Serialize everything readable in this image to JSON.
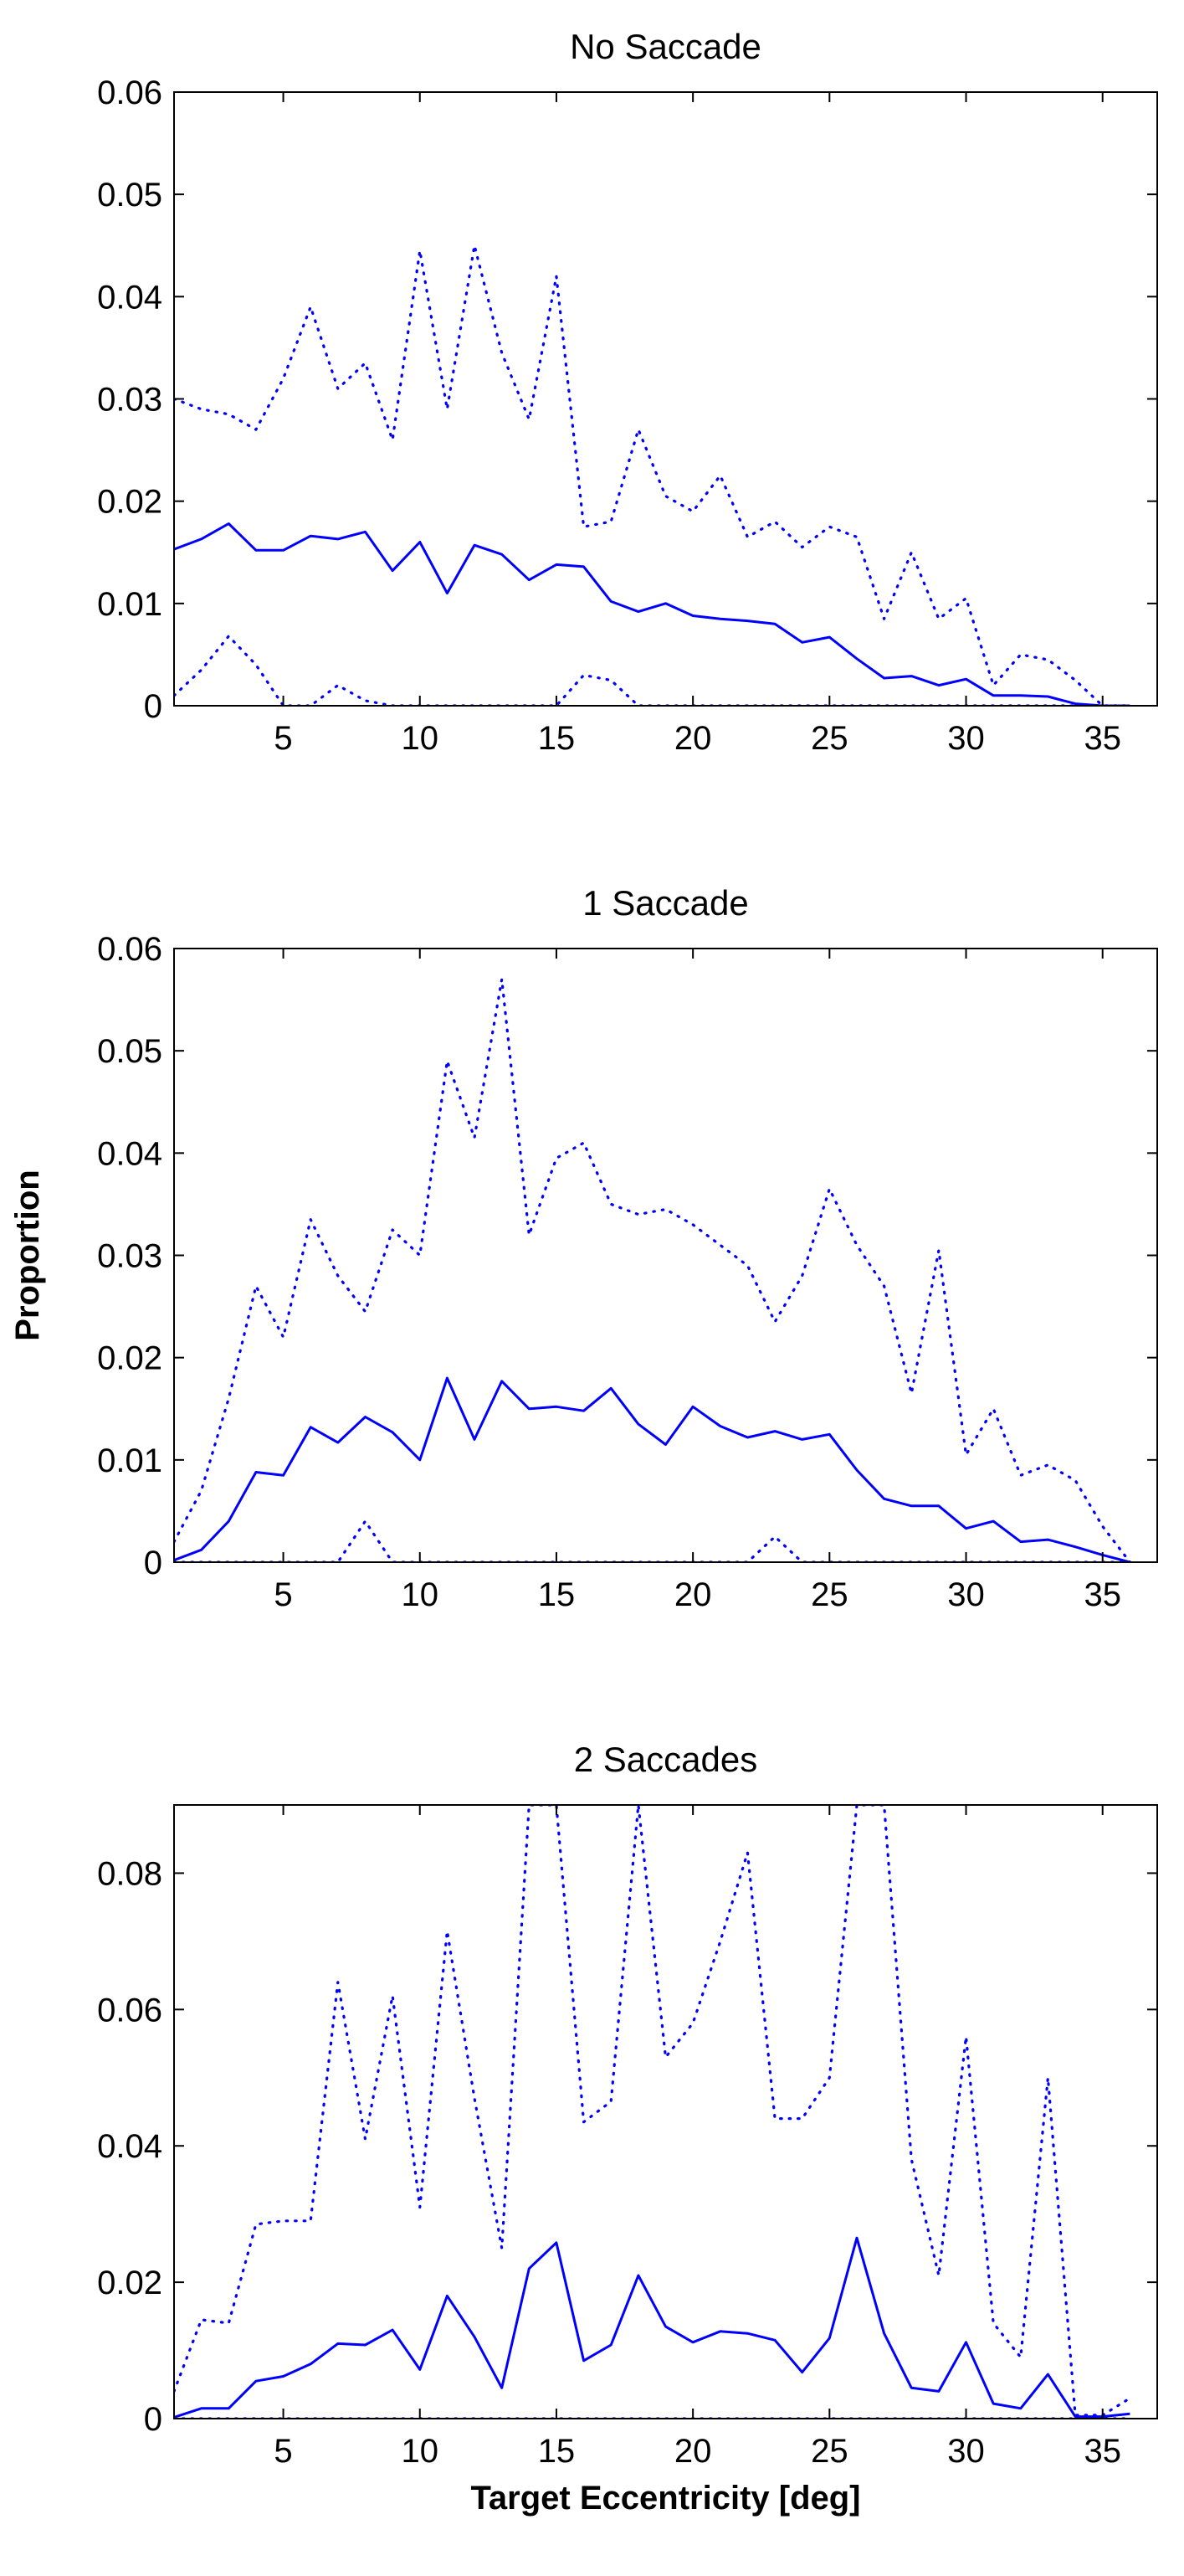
{
  "chart_data": [
    {
      "type": "line",
      "title": "No Saccade",
      "xlabel": "",
      "ylabel": "",
      "xlim": [
        1,
        37
      ],
      "ylim": [
        0,
        0.06
      ],
      "xticks": [
        5,
        10,
        15,
        20,
        25,
        30,
        35
      ],
      "xtick_labels": [
        "5",
        "10",
        "15",
        "20",
        "25",
        "30",
        "35"
      ],
      "yticks": [
        0,
        0.01,
        0.02,
        0.03,
        0.04,
        0.05,
        0.06
      ],
      "ytick_labels": [
        "0",
        "0.01",
        "0.02",
        "0.03",
        "0.04",
        "0.05",
        "0.06"
      ],
      "color": "#0000ff",
      "x": [
        1,
        2,
        3,
        4,
        5,
        6,
        7,
        8,
        9,
        10,
        11,
        12,
        13,
        14,
        15,
        16,
        17,
        18,
        19,
        20,
        21,
        22,
        23,
        24,
        25,
        26,
        27,
        28,
        29,
        30,
        31,
        32,
        33,
        34,
        35,
        36
      ],
      "series": [
        {
          "name": "mean",
          "style": "solid",
          "values": [
            0.0153,
            0.0163,
            0.0178,
            0.0152,
            0.0152,
            0.0166,
            0.0163,
            0.017,
            0.0132,
            0.016,
            0.011,
            0.0157,
            0.0148,
            0.0123,
            0.0138,
            0.0136,
            0.0102,
            0.0092,
            0.01,
            0.0088,
            0.0085,
            0.0083,
            0.008,
            0.0062,
            0.0067,
            0.0046,
            0.0027,
            0.0029,
            0.002,
            0.0026,
            0.001,
            0.001,
            0.0009,
            0.0002,
            0.0,
            0.0
          ]
        },
        {
          "name": "upper",
          "style": "dotted",
          "values": [
            0.03,
            0.029,
            0.0285,
            0.027,
            0.032,
            0.039,
            0.031,
            0.0335,
            0.026,
            0.0445,
            0.029,
            0.045,
            0.0345,
            0.028,
            0.042,
            0.0175,
            0.018,
            0.027,
            0.0205,
            0.019,
            0.0225,
            0.0165,
            0.018,
            0.0155,
            0.0175,
            0.0165,
            0.0085,
            0.015,
            0.0085,
            0.0105,
            0.002,
            0.005,
            0.0045,
            0.0025,
            0.0,
            0.0
          ]
        },
        {
          "name": "lower",
          "style": "dotted",
          "values": [
            0.001,
            0.0035,
            0.0068,
            0.004,
            0.0,
            0.0,
            0.002,
            0.0005,
            0.0,
            0.0,
            0.0,
            0.0,
            0.0,
            0.0,
            0.0,
            0.003,
            0.0025,
            0.0,
            0.0,
            0.0,
            0.0,
            0.0,
            0.0,
            0.0,
            0.0,
            0.0,
            0.0,
            0.0,
            0.0,
            0.0,
            0.0,
            0.0,
            0.0,
            0.0,
            0.0,
            0.0
          ]
        }
      ]
    },
    {
      "type": "line",
      "title": "1 Saccade",
      "xlabel": "",
      "ylabel": "Proportion",
      "xlim": [
        1,
        37
      ],
      "ylim": [
        0,
        0.06
      ],
      "xticks": [
        5,
        10,
        15,
        20,
        25,
        30,
        35
      ],
      "xtick_labels": [
        "5",
        "10",
        "15",
        "20",
        "25",
        "30",
        "35"
      ],
      "yticks": [
        0,
        0.01,
        0.02,
        0.03,
        0.04,
        0.05,
        0.06
      ],
      "ytick_labels": [
        "0",
        "0.01",
        "0.02",
        "0.03",
        "0.04",
        "0.05",
        "0.06"
      ],
      "color": "#0000ff",
      "x": [
        1,
        2,
        3,
        4,
        5,
        6,
        7,
        8,
        9,
        10,
        11,
        12,
        13,
        14,
        15,
        16,
        17,
        18,
        19,
        20,
        21,
        22,
        23,
        24,
        25,
        26,
        27,
        28,
        29,
        30,
        31,
        32,
        33,
        34,
        35,
        36
      ],
      "series": [
        {
          "name": "mean",
          "style": "solid",
          "values": [
            0.0002,
            0.0012,
            0.004,
            0.0088,
            0.0085,
            0.0132,
            0.0117,
            0.0142,
            0.0127,
            0.01,
            0.018,
            0.012,
            0.0177,
            0.015,
            0.0152,
            0.0148,
            0.017,
            0.0135,
            0.0115,
            0.0152,
            0.0133,
            0.0122,
            0.0128,
            0.012,
            0.0125,
            0.009,
            0.0062,
            0.0055,
            0.0055,
            0.0033,
            0.004,
            0.002,
            0.0022,
            0.0015,
            0.0007,
            0.0
          ]
        },
        {
          "name": "upper",
          "style": "dotted",
          "values": [
            0.002,
            0.007,
            0.016,
            0.027,
            0.022,
            0.0335,
            0.028,
            0.0245,
            0.0325,
            0.03,
            0.049,
            0.0415,
            0.057,
            0.032,
            0.0395,
            0.041,
            0.035,
            0.034,
            0.0345,
            0.033,
            0.031,
            0.029,
            0.0235,
            0.028,
            0.0365,
            0.031,
            0.027,
            0.0165,
            0.0305,
            0.0105,
            0.015,
            0.0085,
            0.0095,
            0.008,
            0.0035,
            0.0
          ]
        },
        {
          "name": "lower",
          "style": "dotted",
          "values": [
            0.0,
            0.0,
            0.0,
            0.0,
            0.0,
            0.0,
            0.0,
            0.004,
            0.0,
            0.0,
            0.0,
            0.0,
            0.0,
            0.0,
            0.0,
            0.0,
            0.0,
            0.0,
            0.0,
            0.0,
            0.0,
            0.0,
            0.0025,
            0.0,
            0.0,
            0.0,
            0.0,
            0.0,
            0.0,
            0.0,
            0.0,
            0.0,
            0.0,
            0.0,
            0.0,
            0.0
          ]
        }
      ]
    },
    {
      "type": "line",
      "title": "2 Saccades",
      "xlabel": "Target Eccentricity [deg]",
      "ylabel": "",
      "xlim": [
        1,
        37
      ],
      "ylim": [
        0,
        0.09
      ],
      "xticks": [
        5,
        10,
        15,
        20,
        25,
        30,
        35
      ],
      "xtick_labels": [
        "5",
        "10",
        "15",
        "20",
        "25",
        "30",
        "35"
      ],
      "yticks": [
        0,
        0.02,
        0.04,
        0.06,
        0.08
      ],
      "ytick_labels": [
        "0",
        "0.02",
        "0.04",
        "0.06",
        "0.08"
      ],
      "color": "#0000ff",
      "x": [
        1,
        2,
        3,
        4,
        5,
        6,
        7,
        8,
        9,
        10,
        11,
        12,
        13,
        14,
        15,
        16,
        17,
        18,
        19,
        20,
        21,
        22,
        23,
        24,
        25,
        26,
        27,
        28,
        29,
        30,
        31,
        32,
        33,
        34,
        35,
        36
      ],
      "series": [
        {
          "name": "mean",
          "style": "solid",
          "values": [
            0.0002,
            0.0015,
            0.0015,
            0.0055,
            0.0062,
            0.008,
            0.011,
            0.0108,
            0.013,
            0.0072,
            0.018,
            0.012,
            0.0045,
            0.022,
            0.0258,
            0.0085,
            0.0108,
            0.021,
            0.0135,
            0.0112,
            0.0128,
            0.0125,
            0.0115,
            0.0068,
            0.0118,
            0.0265,
            0.0125,
            0.0045,
            0.004,
            0.0112,
            0.0022,
            0.0015,
            0.0065,
            0.0003,
            0.0003,
            0.0007
          ]
        },
        {
          "name": "upper",
          "style": "dotted",
          "values": [
            0.004,
            0.0145,
            0.014,
            0.0285,
            0.029,
            0.029,
            0.064,
            0.041,
            0.062,
            0.031,
            0.0715,
            0.047,
            0.025,
            0.09,
            0.09,
            0.0435,
            0.0465,
            0.09,
            0.053,
            0.058,
            0.07,
            0.083,
            0.044,
            0.044,
            0.05,
            0.09,
            0.09,
            0.038,
            0.021,
            0.056,
            0.014,
            0.009,
            0.05,
            0.0005,
            0.0005,
            0.003
          ]
        },
        {
          "name": "lower",
          "style": "dotted",
          "values": [
            0.0,
            0.0,
            0.0,
            0.0,
            0.0,
            0.0,
            0.0,
            0.0,
            0.0,
            0.0,
            0.0,
            0.0,
            0.0,
            0.0,
            0.0,
            0.0,
            0.0,
            0.0,
            0.0,
            0.0,
            0.0,
            0.0,
            0.0,
            0.0,
            0.0,
            0.0,
            0.0,
            0.0,
            0.0,
            0.0,
            0.0,
            0.0,
            0.0,
            0.0,
            0.0,
            0.0
          ]
        }
      ]
    }
  ]
}
